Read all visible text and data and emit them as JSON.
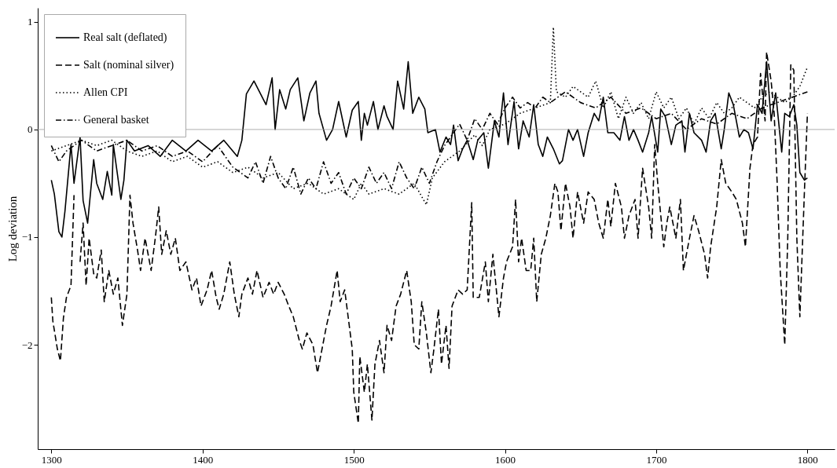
{
  "chart_data": {
    "type": "line",
    "ylabel": "Log deviation",
    "xlim": [
      1291,
      1818
    ],
    "xticks": [
      1300,
      1400,
      1500,
      1600,
      1700,
      1800
    ],
    "ylim": [
      -2.97,
      1.13
    ],
    "yticks": [
      {
        "value": -2,
        "label": "−2"
      },
      {
        "value": -1,
        "label": "−1"
      },
      0,
      1
    ],
    "grid": false,
    "legend": "top left",
    "marker": "none",
    "ref_lines": [
      {
        "axis": "y",
        "value": 0,
        "color": "#999999"
      }
    ],
    "series": [
      {
        "name": "Real salt (deflated)",
        "color": "#000000",
        "line_style": "solid",
        "x": [
          1300,
          1302,
          1305,
          1307,
          1309,
          1313,
          1315,
          1319,
          1321,
          1324,
          1328,
          1330,
          1334,
          1337,
          1340,
          1341,
          1346,
          1348,
          1350,
          1355,
          1364,
          1372,
          1380,
          1389,
          1397,
          1406,
          1414,
          1423,
          1426,
          1429,
          1434,
          1442,
          1446,
          1448,
          1451,
          1455,
          1458,
          1463,
          1467,
          1471,
          1475,
          1477,
          1482,
          1486,
          1490,
          1495,
          1499,
          1503,
          1505,
          1507,
          1509,
          1513,
          1516,
          1520,
          1522,
          1526,
          1529,
          1533,
          1536,
          1539,
          1543,
          1547,
          1549,
          1554,
          1557,
          1561,
          1564,
          1566,
          1569,
          1572,
          1575,
          1579,
          1582,
          1586,
          1589,
          1593,
          1596,
          1599,
          1602,
          1606,
          1609,
          1612,
          1616,
          1619,
          1622,
          1625,
          1628,
          1632,
          1636,
          1638,
          1642,
          1645,
          1648,
          1652,
          1655,
          1659,
          1662,
          1665,
          1668,
          1672,
          1676,
          1679,
          1682,
          1685,
          1688,
          1691,
          1695,
          1697,
          1701,
          1703,
          1706,
          1710,
          1713,
          1717,
          1719,
          1722,
          1725,
          1730,
          1733,
          1736,
          1739,
          1743,
          1745,
          1748,
          1751,
          1755,
          1758,
          1761,
          1764,
          1767,
          1770,
          1773,
          1776,
          1779,
          1783,
          1785,
          1788,
          1791,
          1793,
          1795,
          1798,
          1800
        ],
        "values": [
          -0.47,
          -0.6,
          -0.95,
          -1.0,
          -0.76,
          -0.14,
          -0.5,
          -0.07,
          -0.66,
          -0.87,
          -0.28,
          -0.5,
          -0.65,
          -0.39,
          -0.61,
          -0.14,
          -0.65,
          -0.47,
          -0.1,
          -0.2,
          -0.15,
          -0.25,
          -0.1,
          -0.2,
          -0.1,
          -0.2,
          -0.1,
          -0.25,
          -0.1,
          0.33,
          0.45,
          0.23,
          0.48,
          0.0,
          0.37,
          0.19,
          0.37,
          0.48,
          0.08,
          0.34,
          0.45,
          0.15,
          -0.1,
          0.0,
          0.26,
          -0.07,
          0.18,
          0.26,
          -0.1,
          0.15,
          0.04,
          0.26,
          0.0,
          0.22,
          0.12,
          0.0,
          0.45,
          0.19,
          0.63,
          0.15,
          0.3,
          0.19,
          -0.03,
          0.0,
          -0.21,
          -0.07,
          -0.14,
          0.04,
          -0.29,
          -0.18,
          -0.1,
          -0.28,
          -0.1,
          -0.03,
          -0.36,
          0.08,
          -0.07,
          0.34,
          -0.14,
          0.26,
          -0.18,
          0.08,
          -0.07,
          0.23,
          -0.14,
          -0.25,
          -0.07,
          -0.18,
          -0.32,
          -0.29,
          0.0,
          -0.1,
          0.0,
          -0.25,
          -0.03,
          0.15,
          0.08,
          0.3,
          -0.03,
          -0.03,
          -0.1,
          0.12,
          -0.1,
          0.0,
          -0.1,
          -0.21,
          -0.03,
          0.12,
          -0.21,
          0.19,
          0.12,
          -0.14,
          0.04,
          0.08,
          -0.21,
          0.15,
          -0.03,
          -0.1,
          -0.21,
          0.08,
          0.15,
          -0.18,
          0.0,
          0.34,
          0.23,
          -0.07,
          0.0,
          -0.03,
          -0.18,
          0.23,
          0.15,
          0.63,
          0.08,
          0.34,
          -0.21,
          0.15,
          0.12,
          0.23,
          0.04,
          -0.4,
          -0.47,
          -0.45
        ]
      },
      {
        "name": "Salt (nominal silver)",
        "color": "#000000",
        "line_style": "dashed",
        "x": [
          1300,
          1301,
          1304,
          1306,
          1308,
          1310,
          1313,
          1315,
          1317,
          1319,
          1321,
          1323,
          1325,
          1328,
          1330,
          1333,
          1335,
          1338,
          1341,
          1344,
          1347,
          1350,
          1352,
          1354,
          1357,
          1359,
          1362,
          1366,
          1369,
          1371,
          1373,
          1376,
          1379,
          1382,
          1385,
          1389,
          1393,
          1396,
          1399,
          1403,
          1406,
          1409,
          1411,
          1414,
          1418,
          1421,
          1424,
          1426,
          1430,
          1433,
          1436,
          1440,
          1444,
          1447,
          1450,
          1454,
          1457,
          1460,
          1464,
          1466,
          1469,
          1473,
          1476,
          1479,
          1482,
          1485,
          1489,
          1491,
          1494,
          1497,
          1499,
          1500,
          1503,
          1504,
          1507,
          1509,
          1512,
          1514,
          1517,
          1520,
          1522,
          1525,
          1528,
          1531,
          1535,
          1538,
          1540,
          1543,
          1545,
          1548,
          1551,
          1553,
          1556,
          1558,
          1561,
          1563,
          1565,
          1569,
          1572,
          1575,
          1578,
          1579,
          1583,
          1587,
          1589,
          1592,
          1596,
          1599,
          1601,
          1605,
          1607,
          1609,
          1611,
          1614,
          1617,
          1619,
          1621,
          1624,
          1627,
          1630,
          1633,
          1635,
          1637,
          1640,
          1643,
          1645,
          1648,
          1652,
          1655,
          1659,
          1662,
          1665,
          1668,
          1670,
          1673,
          1677,
          1679,
          1682,
          1686,
          1688,
          1691,
          1695,
          1697,
          1699,
          1701,
          1705,
          1707,
          1709,
          1713,
          1716,
          1718,
          1722,
          1725,
          1728,
          1732,
          1734,
          1736,
          1740,
          1743,
          1746,
          1750,
          1753,
          1757,
          1759,
          1762,
          1764,
          1767,
          1769,
          1772,
          1773,
          1776,
          1778,
          1780,
          1782,
          1785,
          1787,
          1789,
          1791,
          1793,
          1795,
          1798,
          1800
        ],
        "values": [
          -1.56,
          -1.78,
          -2.04,
          -2.15,
          -1.75,
          -1.56,
          -1.45,
          -0.61,
          null,
          -1.23,
          -0.87,
          -1.45,
          -1.01,
          -1.34,
          -1.38,
          -1.12,
          -1.6,
          -1.31,
          -1.53,
          -1.38,
          -1.82,
          -1.53,
          -0.61,
          -0.87,
          -1.12,
          -1.31,
          -1.01,
          -1.31,
          -0.98,
          -0.72,
          -1.16,
          -0.94,
          -1.16,
          -1.01,
          -1.31,
          -1.23,
          -1.49,
          -1.38,
          -1.64,
          -1.49,
          -1.31,
          -1.56,
          -1.67,
          -1.53,
          -1.23,
          -1.53,
          -1.74,
          -1.53,
          -1.38,
          -1.53,
          -1.31,
          -1.56,
          -1.42,
          -1.53,
          -1.42,
          -1.53,
          -1.64,
          -1.74,
          -1.96,
          -2.04,
          -1.89,
          -2.0,
          -2.26,
          -2.04,
          -1.82,
          -1.64,
          -1.31,
          -1.6,
          -1.49,
          -1.82,
          -2.04,
          -2.44,
          -2.73,
          -2.11,
          -2.44,
          -2.18,
          -2.7,
          -2.18,
          -1.96,
          -2.26,
          -1.82,
          -1.96,
          -1.64,
          -1.53,
          -1.31,
          -1.6,
          -2.0,
          -2.04,
          -1.6,
          -1.89,
          -2.26,
          -2.04,
          -1.67,
          -2.18,
          -1.82,
          -2.22,
          -1.64,
          -1.49,
          -1.53,
          -1.49,
          -0.68,
          -1.56,
          -1.56,
          -1.23,
          -1.6,
          -1.16,
          -1.74,
          -1.38,
          -1.23,
          -1.09,
          -0.65,
          -1.23,
          -1.01,
          -1.31,
          -1.31,
          -1.01,
          -1.6,
          -1.16,
          -1.01,
          -0.8,
          -0.5,
          -0.58,
          -0.94,
          -0.5,
          -0.72,
          -1.01,
          -0.58,
          -0.87,
          -0.58,
          -0.65,
          -0.87,
          -1.01,
          -0.65,
          -0.9,
          -0.5,
          -0.72,
          -1.01,
          -0.8,
          -0.65,
          -1.01,
          -0.36,
          -0.72,
          -1.01,
          -0.14,
          -0.5,
          -1.09,
          -0.87,
          -0.72,
          -1.01,
          -0.65,
          -1.31,
          -1.01,
          -0.8,
          -0.94,
          -1.16,
          -1.38,
          -1.09,
          -0.72,
          -0.28,
          -0.5,
          -0.58,
          -0.65,
          -0.87,
          -1.09,
          -0.36,
          -0.14,
          -0.07,
          0.52,
          0.08,
          0.72,
          0.45,
          0.15,
          -0.5,
          -1.31,
          -2.0,
          -1.01,
          0.6,
          0.55,
          -1.01,
          -1.74,
          -0.58,
          0.15
        ]
      },
      {
        "name": "Allen CPI",
        "color": "#000000",
        "line_style": "dotted",
        "x": [
          1300,
          1310,
          1320,
          1330,
          1340,
          1350,
          1360,
          1370,
          1380,
          1390,
          1400,
          1410,
          1420,
          1430,
          1440,
          1450,
          1460,
          1470,
          1480,
          1490,
          1500,
          1505,
          1510,
          1520,
          1530,
          1540,
          1548,
          1552,
          1560,
          1570,
          1580,
          1585,
          1590,
          1600,
          1610,
          1620,
          1630,
          1632,
          1634,
          1640,
          1645,
          1650,
          1655,
          1660,
          1665,
          1670,
          1675,
          1680,
          1685,
          1690,
          1695,
          1700,
          1705,
          1710,
          1715,
          1720,
          1725,
          1730,
          1735,
          1740,
          1745,
          1750,
          1755,
          1760,
          1765,
          1770,
          1775,
          1780,
          1785,
          1790,
          1795,
          1800
        ],
        "values": [
          -0.2,
          -0.15,
          -0.1,
          -0.15,
          -0.1,
          -0.2,
          -0.25,
          -0.2,
          -0.3,
          -0.25,
          -0.35,
          -0.3,
          -0.4,
          -0.35,
          -0.45,
          -0.4,
          -0.55,
          -0.5,
          -0.6,
          -0.55,
          -0.65,
          -0.5,
          -0.6,
          -0.55,
          -0.6,
          -0.5,
          -0.7,
          -0.45,
          -0.3,
          -0.2,
          -0.05,
          -0.15,
          0.0,
          0.05,
          0.15,
          0.2,
          0.25,
          0.95,
          0.35,
          0.3,
          0.4,
          0.35,
          0.3,
          0.45,
          0.2,
          0.35,
          0.1,
          0.3,
          0.15,
          0.25,
          0.1,
          0.35,
          0.2,
          0.3,
          0.1,
          0.2,
          0.05,
          0.2,
          0.1,
          0.25,
          0.15,
          0.2,
          0.3,
          0.25,
          0.2,
          0.3,
          0.35,
          0.3,
          0.25,
          0.3,
          0.4,
          0.58
        ]
      },
      {
        "name": "General basket",
        "color": "#000000",
        "line_style": "dashdot",
        "x": [
          1300,
          1305,
          1310,
          1320,
          1330,
          1340,
          1350,
          1360,
          1370,
          1380,
          1390,
          1400,
          1410,
          1420,
          1430,
          1435,
          1440,
          1445,
          1450,
          1455,
          1460,
          1465,
          1470,
          1475,
          1480,
          1485,
          1490,
          1495,
          1500,
          1505,
          1510,
          1515,
          1520,
          1525,
          1530,
          1535,
          1540,
          1545,
          1550,
          1555,
          1560,
          1565,
          1570,
          1575,
          1580,
          1585,
          1590,
          1595,
          1600,
          1605,
          1610,
          1615,
          1620,
          1625,
          1630,
          1640,
          1650,
          1660,
          1670,
          1680,
          1690,
          1700,
          1710,
          1720,
          1730,
          1740,
          1750,
          1760,
          1770,
          1780,
          1790,
          1800
        ],
        "values": [
          -0.15,
          -0.3,
          -0.2,
          -0.1,
          -0.2,
          -0.15,
          -0.1,
          -0.2,
          -0.15,
          -0.25,
          -0.2,
          -0.3,
          -0.15,
          -0.35,
          -0.45,
          -0.3,
          -0.5,
          -0.25,
          -0.45,
          -0.55,
          -0.35,
          -0.6,
          -0.45,
          -0.55,
          -0.3,
          -0.5,
          -0.4,
          -0.6,
          -0.45,
          -0.55,
          -0.35,
          -0.5,
          -0.4,
          -0.55,
          -0.3,
          -0.45,
          -0.55,
          -0.35,
          -0.5,
          -0.3,
          -0.15,
          -0.05,
          0.05,
          -0.1,
          0.1,
          0.0,
          0.15,
          0.05,
          0.2,
          0.3,
          0.2,
          0.25,
          0.2,
          0.3,
          0.25,
          0.35,
          0.25,
          0.2,
          0.3,
          0.15,
          0.2,
          0.1,
          0.15,
          0.0,
          0.1,
          0.05,
          0.15,
          0.1,
          0.2,
          0.25,
          0.3,
          0.35
        ]
      }
    ]
  }
}
